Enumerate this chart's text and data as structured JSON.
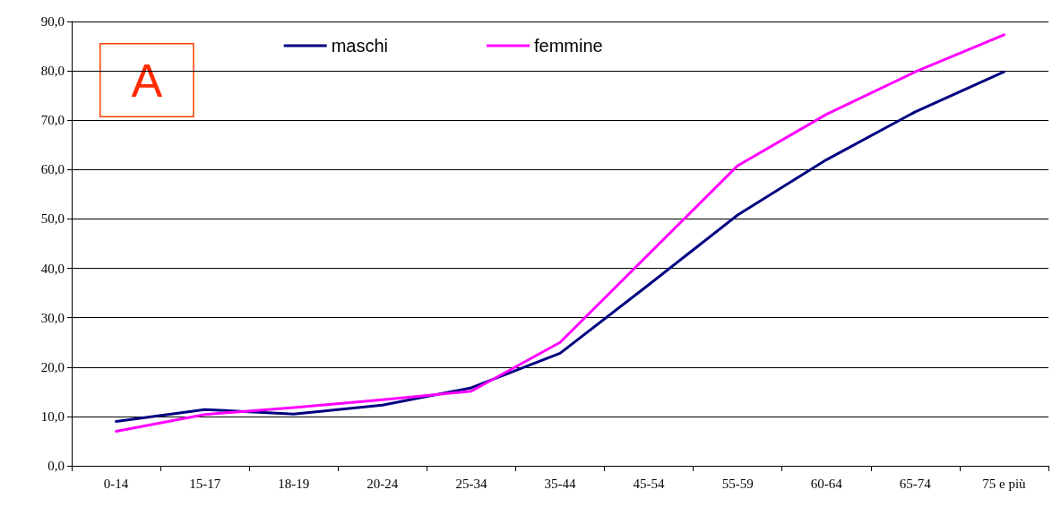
{
  "chart_data": {
    "type": "line",
    "categories": [
      "0-14",
      "15-17",
      "18-19",
      "20-24",
      "25-34",
      "35-44",
      "45-54",
      "55-59",
      "60-64",
      "65-74",
      "75 e più"
    ],
    "series": [
      {
        "name": "maschi",
        "color": "#000080",
        "values": [
          9.0,
          11.4,
          10.5,
          12.3,
          15.8,
          22.8,
          36.7,
          50.8,
          62.0,
          71.7,
          79.8
        ]
      },
      {
        "name": "femmine",
        "color": "#ff00ff",
        "values": [
          7.0,
          10.4,
          11.8,
          13.4,
          15.1,
          25.0,
          42.9,
          60.8,
          71.2,
          79.8,
          87.3
        ]
      }
    ],
    "ylim": [
      0,
      90
    ],
    "yticks": [
      {
        "value": 0,
        "label": "0,0"
      },
      {
        "value": 10,
        "label": "10,0"
      },
      {
        "value": 20,
        "label": "20,0"
      },
      {
        "value": 30,
        "label": "30,0"
      },
      {
        "value": 40,
        "label": "40,0"
      },
      {
        "value": 50,
        "label": "50,0"
      },
      {
        "value": 60,
        "label": "60,0"
      },
      {
        "value": 70,
        "label": "70,0"
      },
      {
        "value": 80,
        "label": "80,0"
      },
      {
        "value": 90,
        "label": "90,0"
      }
    ],
    "grid": "y",
    "legend": "top",
    "marker": "none",
    "line_style": "solid",
    "annotations": [
      "A"
    ]
  }
}
